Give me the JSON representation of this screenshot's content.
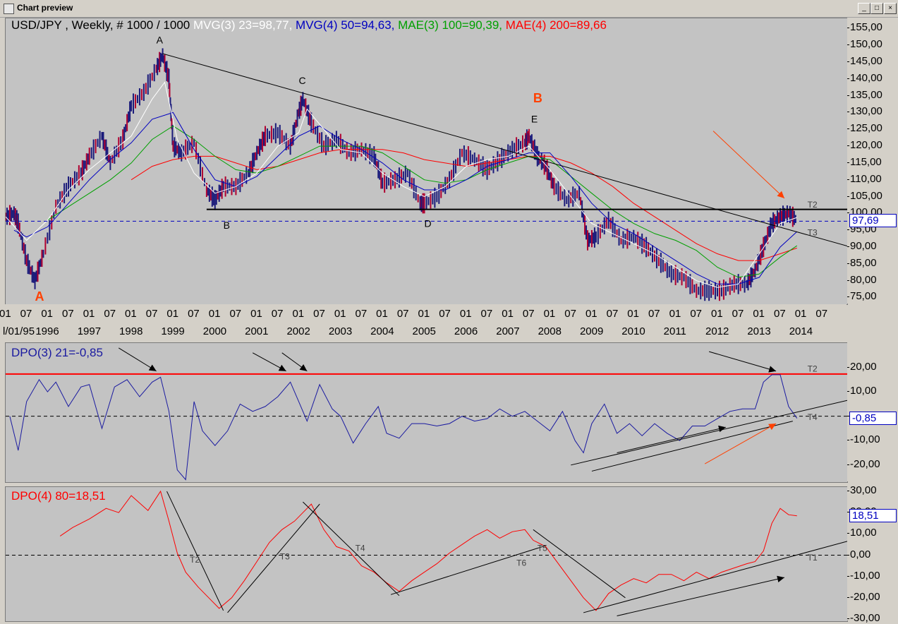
{
  "window": {
    "title": "Chart preview",
    "buttons": [
      "_",
      "□",
      "×"
    ]
  },
  "colors": {
    "mvg3": "#ffffff",
    "mvg4": "#0000c0",
    "mae3": "#00a000",
    "mae4": "#ff0000",
    "price": "#1a1a7a",
    "dpo3": "#1a1aa0",
    "dpo4": "#ff0000",
    "annotation_orange": "#ff4000",
    "trend": "#000000"
  },
  "header": {
    "instrument": "USD/JPY , Weekly, # 1000 / 1000",
    "mvg3": "MVG(3) 23=98,77,",
    "mvg4": "MVG(4) 50=94,63,",
    "mae3": "MAE(3) 100=90,39,",
    "mae4": "MAE(4) 200=89,66"
  },
  "price_axis": {
    "ticks": [
      "155,00",
      "150,00",
      "145,00",
      "140,00",
      "135,00",
      "130,00",
      "125,00",
      "120,00",
      "115,00",
      "110,00",
      "105,00",
      "100,00",
      "95,00",
      "90,00",
      "85,00",
      "80,00",
      "75,00"
    ],
    "last": "97,69"
  },
  "time_axis": {
    "months": [
      "01",
      "07",
      "01",
      "07",
      "01",
      "07",
      "01",
      "07",
      "01",
      "07",
      "01",
      "07",
      "01",
      "07",
      "01",
      "07",
      "01",
      "07",
      "01",
      "07",
      "01",
      "07",
      "01",
      "07",
      "01",
      "07",
      "01",
      "07",
      "01",
      "07",
      "01",
      "07",
      "01",
      "07",
      "01",
      "07",
      "01",
      "07",
      "01",
      "07"
    ],
    "years": [
      "l/01/95",
      "1996",
      "1997",
      "1998",
      "1999",
      "2000",
      "2001",
      "2002",
      "2003",
      "2004",
      "2005",
      "2006",
      "2007",
      "2008",
      "2009",
      "2010",
      "2011",
      "2012",
      "2013",
      "2014"
    ]
  },
  "price_labels": {
    "A_top": "A",
    "B_low": "B",
    "C": "C",
    "D": "D",
    "E": "E",
    "A_big": "A",
    "B_big": "B",
    "T2": "T2",
    "T3": "T3"
  },
  "dpo3": {
    "header": "DPO(3) 21=-0,85",
    "ticks": [
      "20,00",
      "10,00",
      "0,00",
      "-10,00",
      "-20,00"
    ],
    "last": "-0,85",
    "labels": {
      "T2": "T2",
      "T4": "T4"
    }
  },
  "dpo4": {
    "header": "DPO(4) 80=18,51",
    "ticks": [
      "30,00",
      "20,00",
      "10,00",
      "0,00",
      "-10,00",
      "-20,00",
      "-30,00"
    ],
    "last": "18,51",
    "labels": {
      "T1": "T1",
      "T2": "T2",
      "T3": "T3",
      "T4": "T4",
      "T5": "T5",
      "T6": "T6"
    }
  },
  "chart_data": {
    "type": "line",
    "title": "USD/JPY , Weekly, # 1000 / 1000",
    "ylim": [
      73,
      158
    ],
    "xlim": [
      1995.0,
      2015.1
    ],
    "price": {
      "x": [
        1995.0,
        1995.2,
        1995.3,
        1995.5,
        1995.7,
        1995.9,
        1996.2,
        1996.5,
        1996.8,
        1997.0,
        1997.3,
        1997.5,
        1997.8,
        1998.0,
        1998.3,
        1998.6,
        1998.75,
        1998.9,
        1999.0,
        1999.2,
        1999.5,
        1999.8,
        2000.0,
        2000.2,
        2000.5,
        2000.8,
        2001.0,
        2001.2,
        2001.5,
        2001.8,
        2002.0,
        2002.1,
        2002.3,
        2002.6,
        2002.9,
        2003.2,
        2003.5,
        2003.8,
        2004.0,
        2004.3,
        2004.6,
        2004.9,
        2005.0,
        2005.3,
        2005.6,
        2005.9,
        2006.2,
        2006.5,
        2006.8,
        2007.1,
        2007.4,
        2007.5,
        2007.7,
        2007.9,
        2008.1,
        2008.4,
        2008.7,
        2008.9,
        2009.1,
        2009.4,
        2009.7,
        2010.0,
        2010.3,
        2010.6,
        2010.9,
        2011.2,
        2011.5,
        2011.8,
        2012.1,
        2012.4,
        2012.7,
        2012.9,
        2013.1,
        2013.3,
        2013.5,
        2013.7,
        2013.9
      ],
      "y": [
        99,
        100,
        97,
        86,
        80,
        88,
        102,
        108,
        112,
        117,
        123,
        115,
        122,
        132,
        136,
        143,
        147,
        140,
        120,
        118,
        121,
        107,
        104,
        108,
        108,
        112,
        118,
        123,
        124,
        120,
        130,
        134,
        127,
        120,
        122,
        118,
        119,
        117,
        109,
        110,
        112,
        103,
        103,
        105,
        110,
        118,
        116,
        113,
        116,
        119,
        121,
        123,
        117,
        114,
        108,
        104,
        106,
        92,
        93,
        98,
        92,
        93,
        90,
        86,
        82,
        81,
        77,
        77,
        77,
        79,
        79,
        83,
        90,
        97,
        99,
        100,
        98
      ]
    },
    "mvg3_23": {
      "x": [
        1995.0,
        1995.5,
        1996.0,
        1996.5,
        1997.0,
        1997.5,
        1998.0,
        1998.5,
        1998.8,
        1999.1,
        1999.5,
        2000.0,
        2000.5,
        2001.0,
        2001.5,
        2002.0,
        2002.2,
        2002.6,
        2003.0,
        2003.5,
        2004.0,
        2004.5,
        2005.0,
        2005.5,
        2006.0,
        2006.5,
        2007.0,
        2007.5,
        2008.0,
        2008.5,
        2009.0,
        2009.5,
        2010.0,
        2010.5,
        2011.0,
        2011.5,
        2012.0,
        2012.5,
        2013.0,
        2013.5,
        2013.9
      ],
      "y": [
        99,
        92,
        98,
        107,
        113,
        118,
        123,
        134,
        139,
        122,
        112,
        106,
        108,
        112,
        120,
        124,
        131,
        125,
        119,
        118,
        112,
        108,
        105,
        108,
        114,
        116,
        117,
        120,
        113,
        105,
        97,
        94,
        91,
        88,
        84,
        80,
        78,
        79,
        88,
        97,
        98.8
      ]
    },
    "mvg4_50": {
      "x": [
        1995.2,
        1995.5,
        1996.0,
        1996.5,
        1997.0,
        1997.5,
        1998.0,
        1998.5,
        1999.0,
        1999.5,
        2000.0,
        2000.5,
        2001.0,
        2001.5,
        2002.0,
        2002.5,
        2003.0,
        2003.5,
        2004.0,
        2004.5,
        2005.0,
        2005.5,
        2006.0,
        2006.5,
        2007.0,
        2007.5,
        2008.0,
        2008.5,
        2009.0,
        2009.5,
        2010.0,
        2010.5,
        2011.0,
        2011.5,
        2012.0,
        2012.5,
        2013.0,
        2013.5,
        2013.9
      ],
      "y": [
        95,
        93,
        96,
        103,
        110,
        116,
        121,
        128,
        130,
        119,
        110,
        108,
        111,
        117,
        123,
        126,
        122,
        119,
        115,
        110,
        107,
        107,
        110,
        114,
        116,
        118,
        118,
        111,
        103,
        97,
        94,
        90,
        86,
        82,
        79,
        79,
        81,
        90,
        94.6
      ]
    },
    "mae3_100": {
      "x": [
        1996.0,
        1996.5,
        1997.0,
        1997.5,
        1998.0,
        1998.5,
        1999.0,
        1999.5,
        2000.0,
        2000.5,
        2001.0,
        2001.5,
        2002.0,
        2002.5,
        2003.0,
        2003.5,
        2004.0,
        2004.5,
        2005.0,
        2005.5,
        2006.0,
        2006.5,
        2007.0,
        2007.5,
        2008.0,
        2008.5,
        2009.0,
        2009.5,
        2010.0,
        2010.5,
        2011.0,
        2011.5,
        2012.0,
        2012.5,
        2013.0,
        2013.5,
        2013.9
      ],
      "y": [
        98,
        102,
        106,
        110,
        115,
        122,
        126,
        122,
        117,
        113,
        112,
        114,
        117,
        120,
        120,
        120,
        118,
        114,
        110,
        109,
        110,
        113,
        115,
        117,
        116,
        111,
        106,
        101,
        97,
        94,
        92,
        89,
        84,
        81,
        82,
        87,
        90.4
      ]
    },
    "mae4_200": {
      "x": [
        1998.0,
        1998.5,
        1999.0,
        1999.5,
        2000.0,
        2000.5,
        2001.0,
        2001.5,
        2002.0,
        2002.5,
        2003.0,
        2003.5,
        2004.0,
        2004.5,
        2005.0,
        2005.5,
        2006.0,
        2006.5,
        2007.0,
        2007.5,
        2008.0,
        2008.5,
        2009.0,
        2009.5,
        2010.0,
        2010.5,
        2011.0,
        2011.5,
        2012.0,
        2012.5,
        2013.0,
        2013.5,
        2013.9
      ],
      "y": [
        110,
        114,
        116,
        117,
        117,
        115,
        113,
        114,
        116,
        118,
        119,
        119,
        119,
        118,
        116,
        115,
        114,
        115,
        116,
        117,
        117,
        115,
        112,
        108,
        103,
        99,
        95,
        91,
        88,
        86,
        86,
        88,
        89.7
      ]
    },
    "dpo3_21": {
      "ylim": [
        -27,
        30
      ],
      "x": [
        1995.1,
        1995.3,
        1995.5,
        1995.8,
        1996.0,
        1996.2,
        1996.5,
        1996.8,
        1997.0,
        1997.3,
        1997.6,
        1997.9,
        1998.2,
        1998.5,
        1998.7,
        1998.9,
        1999.1,
        1999.3,
        1999.5,
        1999.7,
        2000.0,
        2000.3,
        2000.6,
        2000.9,
        2001.2,
        2001.5,
        2001.8,
        2002.0,
        2002.2,
        2002.5,
        2002.8,
        2003.0,
        2003.3,
        2003.6,
        2003.9,
        2004.1,
        2004.4,
        2004.7,
        2005.0,
        2005.3,
        2005.6,
        2005.9,
        2006.2,
        2006.5,
        2006.8,
        2007.1,
        2007.4,
        2007.7,
        2008.0,
        2008.3,
        2008.6,
        2008.8,
        2009.0,
        2009.3,
        2009.6,
        2009.9,
        2010.2,
        2010.5,
        2010.8,
        2011.1,
        2011.4,
        2011.7,
        2012.0,
        2012.3,
        2012.6,
        2012.9,
        2013.1,
        2013.3,
        2013.5,
        2013.7,
        2013.9
      ],
      "y": [
        0,
        -14,
        6,
        15,
        10,
        14,
        4,
        12,
        13,
        -5,
        12,
        15,
        8,
        14,
        16,
        2,
        -22,
        -26,
        6,
        -6,
        -12,
        -6,
        5,
        2,
        4,
        8,
        14,
        6,
        -2,
        13,
        3,
        0,
        -11,
        -3,
        4,
        -7,
        -9,
        -3,
        -3,
        -4,
        -3,
        0,
        -2,
        -1,
        3,
        0,
        2,
        -2,
        -6,
        2,
        -10,
        -15,
        -3,
        5,
        -7,
        -3,
        -8,
        -3,
        -7,
        -10,
        -4,
        -4,
        -1,
        2,
        3,
        3,
        14,
        17,
        17,
        4,
        -0.85
      ]
    },
    "dpo4_80": {
      "ylim": [
        -31,
        32
      ],
      "x": [
        1996.3,
        1996.6,
        1997.0,
        1997.4,
        1997.7,
        1998.0,
        1998.4,
        1998.7,
        1998.9,
        1999.1,
        1999.3,
        1999.6,
        1999.9,
        2000.1,
        2000.4,
        2000.7,
        2001.0,
        2001.3,
        2001.6,
        2001.9,
        2002.1,
        2002.3,
        2002.6,
        2002.9,
        2003.2,
        2003.5,
        2003.8,
        2004.1,
        2004.4,
        2004.7,
        2005.0,
        2005.3,
        2005.6,
        2005.9,
        2006.2,
        2006.5,
        2006.8,
        2007.1,
        2007.4,
        2007.6,
        2007.9,
        2008.2,
        2008.5,
        2008.8,
        2009.1,
        2009.4,
        2009.7,
        2010.0,
        2010.3,
        2010.6,
        2010.9,
        2011.2,
        2011.5,
        2011.8,
        2012.1,
        2012.4,
        2012.7,
        2012.9,
        2013.1,
        2013.3,
        2013.5,
        2013.7,
        2013.9
      ],
      "y": [
        9,
        13,
        17,
        22,
        20,
        28,
        21,
        30,
        16,
        1,
        -8,
        -15,
        -21,
        -25,
        -20,
        -12,
        -3,
        6,
        12,
        16,
        20,
        24,
        12,
        4,
        2,
        -5,
        -8,
        -13,
        -17,
        -12,
        -8,
        -4,
        1,
        5,
        9,
        12,
        8,
        11,
        12,
        7,
        4,
        -4,
        -12,
        -20,
        -26,
        -18,
        -14,
        -11,
        -13,
        -9,
        -9,
        -12,
        -8,
        -11,
        -8,
        -6,
        -4,
        -3,
        2,
        15,
        22,
        19,
        18.5
      ]
    },
    "levels": {
      "price_horizontal": 101.2,
      "price_last": 97.69,
      "dpo3_upper": 17.3
    }
  }
}
